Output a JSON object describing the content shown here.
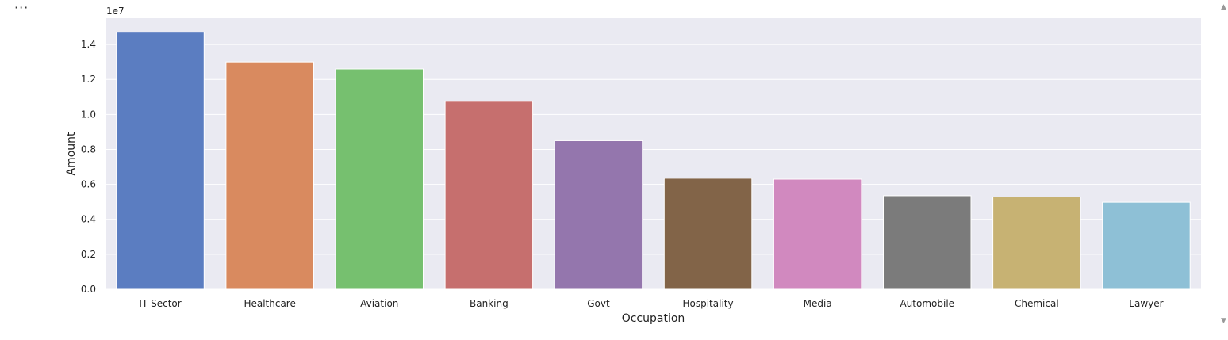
{
  "cell": {
    "ellipsis": "···",
    "scroll_up_glyph": "▲",
    "scroll_down_glyph": "▼"
  },
  "chart_data": {
    "type": "bar",
    "categories": [
      "IT Sector",
      "Healthcare",
      "Aviation",
      "Banking",
      "Govt",
      "Hospitality",
      "Media",
      "Automobile",
      "Chemical",
      "Lawyer"
    ],
    "values": [
      14700000,
      13000000,
      12600000,
      10750000,
      8500000,
      6350000,
      6300000,
      5350000,
      5280000,
      4980000
    ],
    "colors": [
      "#5b7dc1",
      "#d98a5f",
      "#76c06f",
      "#c66f6e",
      "#9476ad",
      "#826448",
      "#d189bf",
      "#7b7b7b",
      "#c7b273",
      "#8ec0d6"
    ],
    "title": "",
    "xlabel": "Occupation",
    "ylabel": "Amount",
    "offset_label": "1e7",
    "ylim": [
      0,
      15500000
    ],
    "yticks": [
      0,
      0.2,
      0.4,
      0.6,
      0.8,
      1.0,
      1.2,
      1.4
    ],
    "ytick_labels": [
      "0.0",
      "0.2",
      "0.4",
      "0.6",
      "0.8",
      "1.0",
      "1.2",
      "1.4"
    ],
    "ytick_scale": 10000000,
    "grid": true,
    "background": "#eaeaf2"
  }
}
